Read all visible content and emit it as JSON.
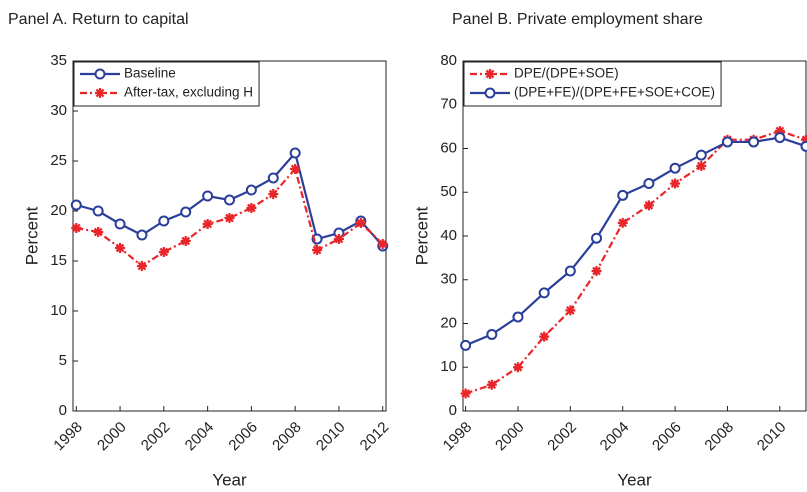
{
  "chart_data": [
    {
      "type": "line",
      "title": "Panel A. Return to capital",
      "xlabel": "Year",
      "ylabel": "Percent",
      "x": [
        1998,
        1999,
        2000,
        2001,
        2002,
        2003,
        2004,
        2005,
        2006,
        2007,
        2008,
        2009,
        2010,
        2011,
        2012
      ],
      "series": [
        {
          "name": "Baseline",
          "color": "#2b3f9a",
          "linestyle": "solid",
          "marker": "circle",
          "values": [
            20.6,
            20.0,
            18.7,
            17.6,
            19.0,
            19.9,
            21.5,
            21.1,
            22.1,
            23.3,
            25.8,
            17.2,
            17.8,
            19.0,
            16.5
          ]
        },
        {
          "name": "After-tax, excluding H",
          "color": "#e8262a",
          "linestyle": "dashdot",
          "marker": "star",
          "values": [
            18.3,
            17.9,
            16.3,
            14.5,
            15.9,
            17.0,
            18.7,
            19.3,
            20.3,
            21.7,
            24.2,
            16.1,
            17.2,
            18.8,
            16.7
          ]
        }
      ],
      "xlim": [
        1997.85,
        2012.15
      ],
      "ylim": [
        0,
        35
      ],
      "xticks": [
        1998,
        2000,
        2002,
        2004,
        2006,
        2008,
        2010,
        2012
      ],
      "yticks": [
        0,
        5,
        10,
        15,
        20,
        25,
        30,
        35
      ],
      "legend": "upper left"
    },
    {
      "type": "line",
      "title": "Panel B. Private employment share",
      "xlabel": "Year",
      "ylabel": "Percent",
      "x": [
        1998,
        1999,
        2000,
        2001,
        2002,
        2003,
        2004,
        2005,
        2006,
        2007,
        2008,
        2009,
        2010,
        2011
      ],
      "series": [
        {
          "name": "DPE/(DPE+SOE)",
          "color": "#e8262a",
          "linestyle": "dashdot",
          "marker": "star",
          "values": [
            4,
            6,
            10,
            17,
            23,
            32,
            43,
            47,
            52,
            56,
            62,
            62,
            64,
            62
          ]
        },
        {
          "name": "(DPE+FE)/(DPE+FE+SOE+COE)",
          "color": "#2b3f9a",
          "linestyle": "solid",
          "marker": "circle",
          "values": [
            15,
            17.5,
            21.5,
            27,
            32,
            39.5,
            49.3,
            52,
            55.5,
            58.5,
            61.5,
            61.5,
            62.5,
            60.5
          ]
        }
      ],
      "xlim": [
        1997.9,
        2011
      ],
      "ylim": [
        0,
        80
      ],
      "xticks": [
        1998,
        2000,
        2002,
        2004,
        2006,
        2008,
        2010
      ],
      "yticks": [
        0,
        10,
        20,
        30,
        40,
        50,
        60,
        70,
        80
      ],
      "legend": "upper left"
    }
  ]
}
